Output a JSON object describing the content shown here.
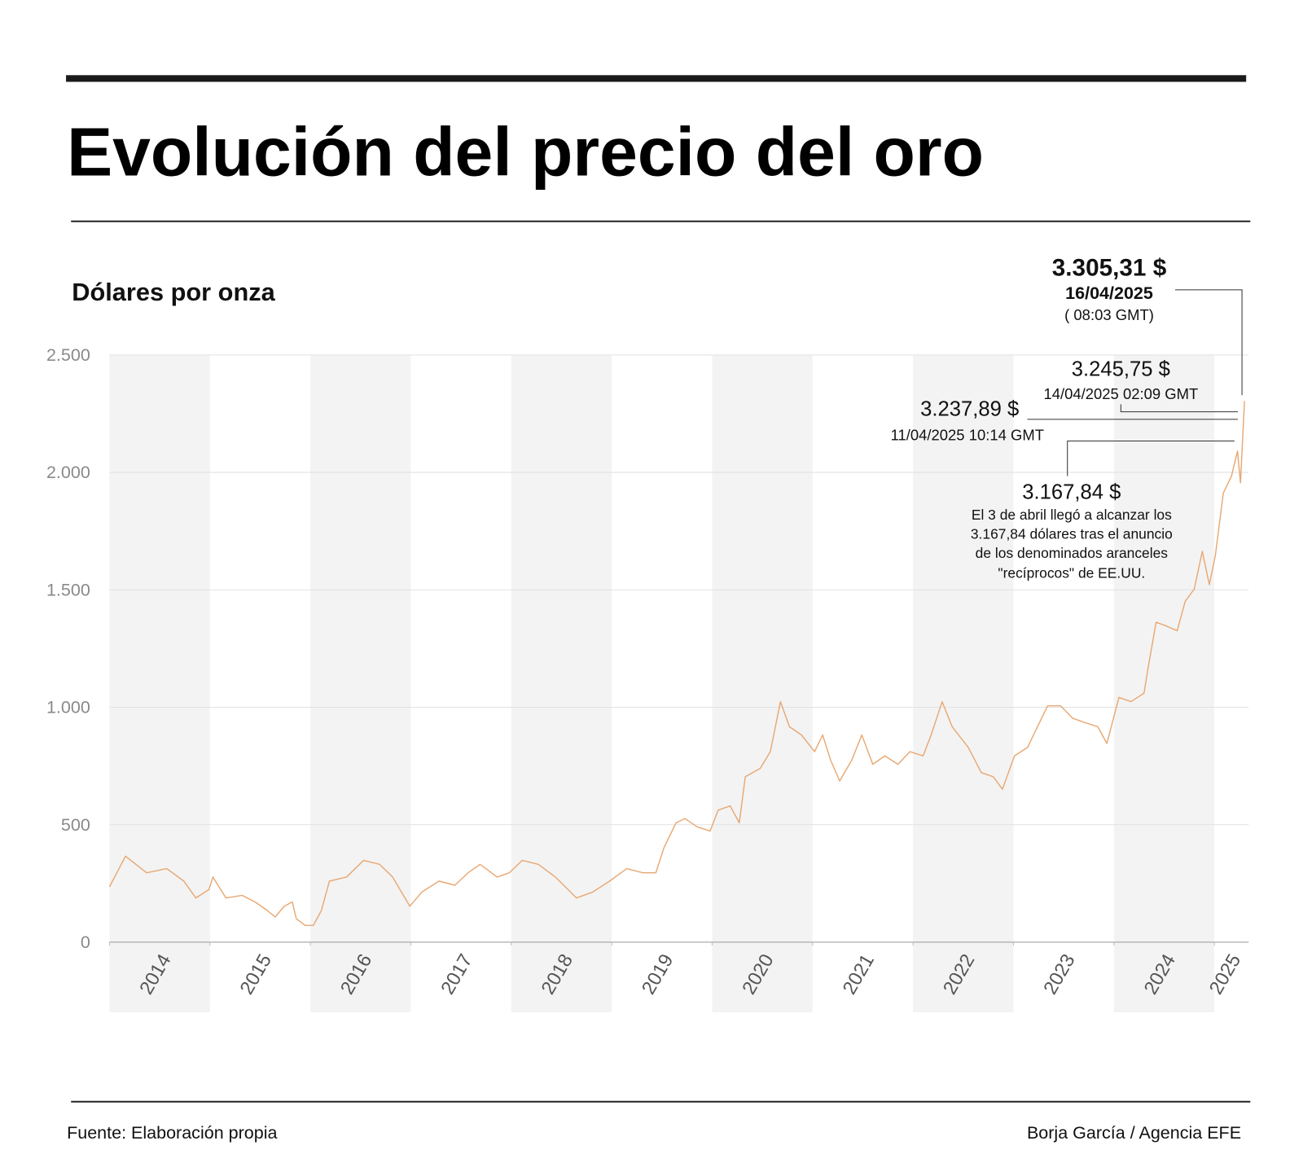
{
  "chart_data": {
    "type": "line",
    "title": "Evolución del precio del oro",
    "subtitle": "Dólares por onza",
    "source": "Fuente: Elaboración propia",
    "credit": "Borja García / Agencia EFE",
    "color": "#e8a873",
    "grid": true,
    "shaded_bands": true,
    "xlim": [
      2014,
      2025.3
    ],
    "xticks": [
      2014,
      2015,
      2016,
      2017,
      2018,
      2019,
      2020,
      2021,
      2022,
      2023,
      2024,
      2025
    ],
    "ylim": [
      0,
      2500
    ],
    "yticks": [
      0,
      500,
      {
        "value": 1000,
        "label": "1.000"
      },
      {
        "value": 1500,
        "label": "1.500"
      },
      {
        "value": 2000,
        "label": "2.000"
      },
      {
        "value": 2500,
        "label": "2.500"
      }
    ],
    "x": [
      2014.0,
      2014.16,
      2014.37,
      2014.57,
      2014.74,
      2014.86,
      2014.99,
      2015.03,
      2015.16,
      2015.32,
      2015.45,
      2015.57,
      2015.65,
      2015.74,
      2015.82,
      2015.86,
      2015.95,
      2016.03,
      2016.11,
      2016.19,
      2016.36,
      2016.53,
      2016.69,
      2016.82,
      2016.99,
      2017.11,
      2017.28,
      2017.44,
      2017.57,
      2017.69,
      2017.86,
      2017.98,
      2018.11,
      2018.27,
      2018.44,
      2018.65,
      2018.81,
      2018.98,
      2019.15,
      2019.31,
      2019.44,
      2019.52,
      2019.64,
      2019.73,
      2019.85,
      2019.98,
      2020.06,
      2020.18,
      2020.27,
      2020.33,
      2020.48,
      2020.58,
      2020.68,
      2020.77,
      2020.89,
      2021.02,
      2021.1,
      2021.18,
      2021.27,
      2021.39,
      2021.49,
      2021.6,
      2021.72,
      2021.85,
      2021.97,
      2022.1,
      2022.18,
      2022.29,
      2022.39,
      2022.55,
      2022.68,
      2022.8,
      2022.89,
      2023.01,
      2023.14,
      2023.22,
      2023.34,
      2023.47,
      2023.59,
      2023.71,
      2023.84,
      2023.93,
      2024.05,
      2024.17,
      2024.3,
      2024.34,
      2024.42,
      2024.51,
      2024.63,
      2024.71,
      2024.8,
      2024.88,
      2024.95,
      2025.01,
      2025.09,
      2025.17,
      2025.23,
      2025.26,
      2025.3
    ],
    "series": [
      {
        "values": [
          235,
          366,
          295,
          313,
          260,
          188,
          224,
          277,
          188,
          199,
          171,
          135,
          107,
          153,
          171,
          100,
          71,
          71,
          135,
          260,
          277,
          348,
          331,
          277,
          153,
          213,
          260,
          242,
          295,
          331,
          277,
          295,
          348,
          331,
          277,
          188,
          213,
          260,
          313,
          295,
          295,
          402,
          508,
          526,
          491,
          473,
          562,
          580,
          508,
          704,
          740,
          811,
          1024,
          917,
          882,
          811,
          882,
          775,
          686,
          775,
          882,
          757,
          793,
          757,
          811,
          793,
          882,
          1024,
          917,
          829,
          722,
          704,
          651,
          793,
          829,
          900,
          1006,
          1006,
          953,
          935,
          917,
          846,
          1042,
          1024,
          1060,
          1166,
          1362,
          1348,
          1326,
          1451,
          1504,
          1664,
          1522,
          1646,
          1913,
          1984,
          2091,
          1956,
          2304
        ]
      }
    ],
    "annotations": [
      {
        "lines": [
          "3.305,31 $",
          "16/04/2025",
          "( 08:03 GMT)"
        ]
      },
      {
        "lines": [
          "3.245,75 $",
          "14/04/2025 02:09 GMT"
        ]
      },
      {
        "lines": [
          "3.237,89 $",
          "11/04/2025 10:14 GMT"
        ]
      },
      {
        "lines": [
          "3.167,84 $",
          "El 3 de abril llegó a alcanzar los",
          "3.167,84 dólares tras el anuncio",
          "de los denominados aranceles",
          "\"recíprocos\" de EE.UU."
        ]
      }
    ]
  }
}
